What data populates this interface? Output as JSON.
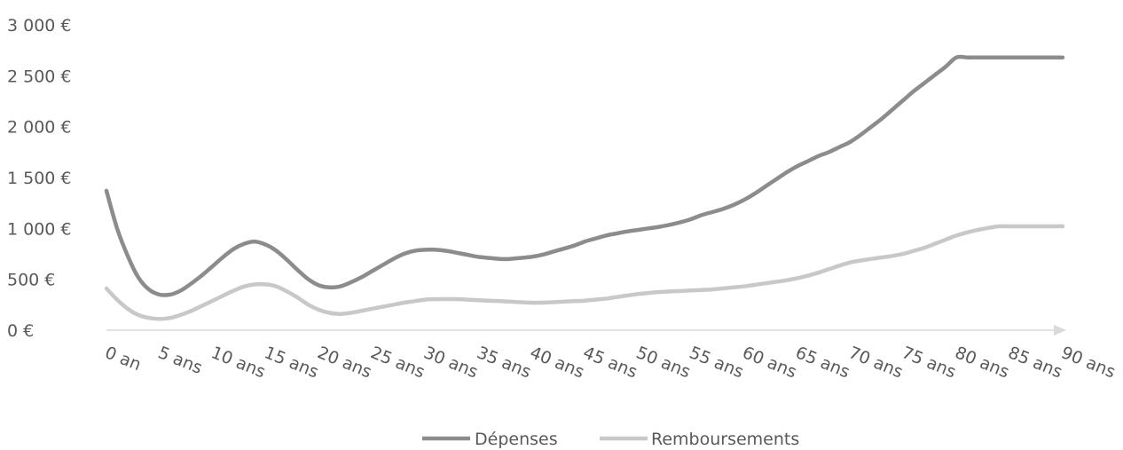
{
  "chart_data": {
    "type": "line",
    "title": "",
    "xlabel": "",
    "ylabel": "",
    "ylim": [
      0,
      3000
    ],
    "y_ticks": [
      "0 €",
      "500 €",
      "1 000 €",
      "1 500 €",
      "2 000 €",
      "2 500 €",
      "3 000 €"
    ],
    "y_tick_values": [
      0,
      500,
      1000,
      1500,
      2000,
      2500,
      3000
    ],
    "x_ticks": [
      "0 an",
      "5 ans",
      "10 ans",
      "15 ans",
      "20 ans",
      "25 ans",
      "30 ans",
      "35 ans",
      "40 ans",
      "45 ans",
      "50 ans",
      "55 ans",
      "60 ans",
      "65 ans",
      "70 ans",
      "75 ans",
      "80 ans",
      "85 ans",
      "90 ans"
    ],
    "x_tick_values": [
      0,
      5,
      10,
      15,
      20,
      25,
      30,
      35,
      40,
      45,
      50,
      55,
      60,
      65,
      70,
      75,
      80,
      85,
      90
    ],
    "xlim": [
      0,
      90
    ],
    "legend_position": "bottom",
    "grid": false,
    "x": [
      0,
      1,
      2,
      3,
      4,
      5,
      6,
      7,
      8,
      9,
      10,
      11,
      12,
      13,
      14,
      15,
      16,
      17,
      18,
      19,
      20,
      21,
      22,
      23,
      24,
      25,
      26,
      27,
      28,
      29,
      30,
      31,
      32,
      33,
      34,
      35,
      36,
      37,
      38,
      39,
      40,
      41,
      42,
      43,
      44,
      45,
      46,
      47,
      48,
      49,
      50,
      51,
      52,
      53,
      54,
      55,
      56,
      57,
      58,
      59,
      60,
      61,
      62,
      63,
      64,
      65,
      66,
      67,
      68,
      69,
      70,
      71,
      72,
      73,
      74,
      75,
      76,
      77,
      78,
      79,
      80,
      81,
      82,
      83,
      84,
      85,
      86,
      87,
      88,
      89,
      90
    ],
    "series": [
      {
        "name": "Dépenses",
        "color": "#8c8c8c",
        "values": [
          1370,
          1000,
          730,
          520,
          400,
          350,
          350,
          390,
          460,
          540,
          630,
          720,
          800,
          850,
          870,
          840,
          780,
          690,
          590,
          500,
          440,
          420,
          430,
          470,
          520,
          580,
          640,
          700,
          750,
          780,
          790,
          790,
          780,
          760,
          740,
          720,
          710,
          700,
          700,
          710,
          720,
          740,
          770,
          800,
          830,
          870,
          900,
          930,
          950,
          970,
          985,
          1000,
          1015,
          1035,
          1060,
          1090,
          1130,
          1160,
          1190,
          1230,
          1280,
          1340,
          1410,
          1480,
          1550,
          1610,
          1660,
          1710,
          1750,
          1800,
          1850,
          1920,
          2000,
          2080,
          2170,
          2260,
          2350,
          2430,
          2510,
          2590,
          2680,
          2680,
          2680,
          2680,
          2680,
          2680,
          2680,
          2680,
          2680,
          2680,
          2680
        ]
      },
      {
        "name": "Remboursements",
        "color": "#c8c8c8",
        "values": [
          410,
          300,
          210,
          150,
          120,
          110,
          120,
          150,
          190,
          240,
          290,
          340,
          390,
          430,
          450,
          450,
          430,
          380,
          320,
          250,
          200,
          170,
          160,
          170,
          190,
          210,
          230,
          250,
          270,
          285,
          300,
          305,
          305,
          305,
          300,
          295,
          290,
          285,
          280,
          275,
          270,
          270,
          275,
          280,
          285,
          290,
          300,
          310,
          325,
          340,
          355,
          365,
          375,
          380,
          385,
          390,
          395,
          400,
          410,
          420,
          430,
          445,
          460,
          475,
          490,
          510,
          535,
          565,
          600,
          635,
          665,
          685,
          700,
          715,
          730,
          750,
          780,
          810,
          850,
          890,
          930,
          960,
          985,
          1005,
          1020,
          1020,
          1020,
          1020,
          1020,
          1020,
          1020
        ]
      }
    ]
  }
}
